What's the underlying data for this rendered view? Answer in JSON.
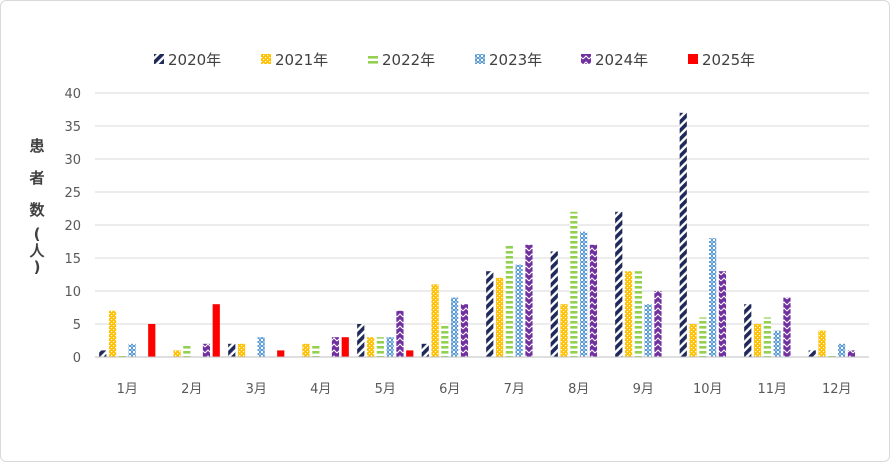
{
  "chart_data": {
    "type": "bar",
    "title": "",
    "xlabel": "",
    "ylabel": "患者数(人)",
    "ylabel_chars": [
      "患",
      "者",
      "数",
      "(",
      "人",
      ")"
    ],
    "ylim": [
      0,
      40
    ],
    "yticks": [
      0,
      5,
      10,
      15,
      20,
      25,
      30,
      35,
      40
    ],
    "grid": "horizontal",
    "legend_position": "top",
    "categories": [
      "1月",
      "2月",
      "3月",
      "4月",
      "5月",
      "6月",
      "7月",
      "8月",
      "9月",
      "10月",
      "11月",
      "12月"
    ],
    "series": [
      {
        "name": "2020年",
        "color": "#1f2a5a",
        "pattern": "diagonal-stripes",
        "values": [
          1,
          0,
          2,
          0,
          5,
          2,
          13,
          16,
          22,
          37,
          8,
          1
        ]
      },
      {
        "name": "2021年",
        "color": "#ffc000",
        "pattern": "dotted",
        "values": [
          7,
          1,
          2,
          2,
          3,
          11,
          12,
          8,
          13,
          5,
          5,
          4
        ]
      },
      {
        "name": "2022年",
        "color": "#92d050",
        "pattern": "horizontal-stripes",
        "values": [
          0.5,
          2,
          0,
          2,
          3,
          5,
          17,
          22,
          13,
          6,
          6,
          0.5
        ]
      },
      {
        "name": "2023年",
        "color": "#5b9bd5",
        "pattern": "checker",
        "values": [
          2,
          0,
          3,
          0,
          3,
          9,
          14,
          19,
          8,
          18,
          4,
          2
        ]
      },
      {
        "name": "2024年",
        "color": "#7030a0",
        "pattern": "zigzag",
        "values": [
          0,
          2,
          0,
          3,
          7,
          8,
          17,
          17,
          10,
          13,
          9,
          1
        ]
      },
      {
        "name": "2025年",
        "color": "#ff0000",
        "pattern": "solid",
        "values": [
          5,
          8,
          1,
          3,
          1,
          null,
          null,
          null,
          null,
          null,
          null,
          null
        ]
      }
    ]
  }
}
